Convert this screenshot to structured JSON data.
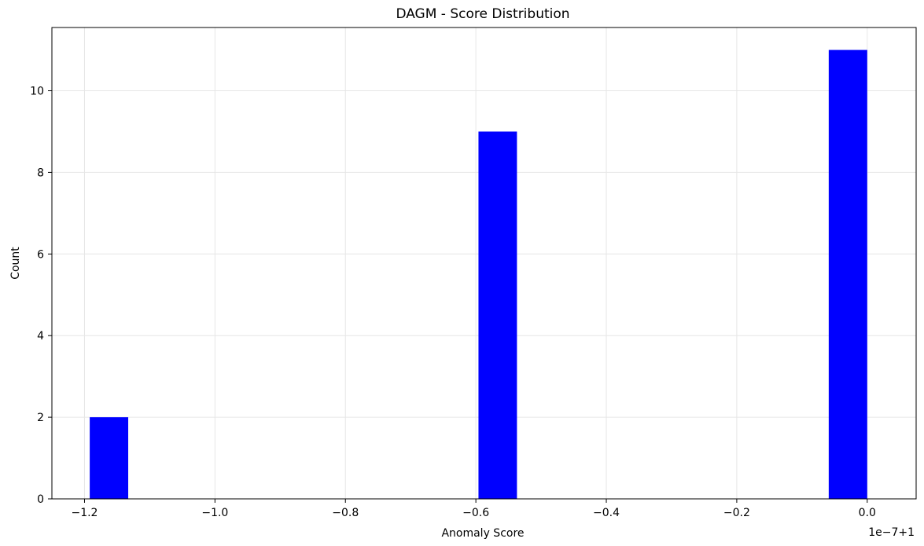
{
  "chart_data": {
    "type": "bar",
    "title": "DAGM - Score Distribution",
    "xlabel": "Anomaly Score",
    "ylabel": "Count",
    "offset_label": "1e−7+1",
    "xlim": [
      -1.25,
      0.075
    ],
    "ylim": [
      0,
      11.55
    ],
    "xticks": [
      -1.2,
      -1.0,
      -0.8,
      -0.6,
      -0.4,
      -0.2,
      0.0
    ],
    "xtick_labels": [
      "−1.2",
      "−1.0",
      "−0.8",
      "−0.6",
      "−0.4",
      "−0.2",
      "0.0"
    ],
    "yticks": [
      0,
      2,
      4,
      6,
      8,
      10
    ],
    "ytick_labels": [
      "0",
      "2",
      "4",
      "6",
      "8",
      "10"
    ],
    "grid": true,
    "bar_color": "#0000ff",
    "bins": [
      {
        "x0": -1.192,
        "x1": -1.133,
        "count": 2
      },
      {
        "x0": -0.596,
        "x1": -0.537,
        "count": 9
      },
      {
        "x0": -0.059,
        "x1": 0.0,
        "count": 11
      }
    ]
  }
}
